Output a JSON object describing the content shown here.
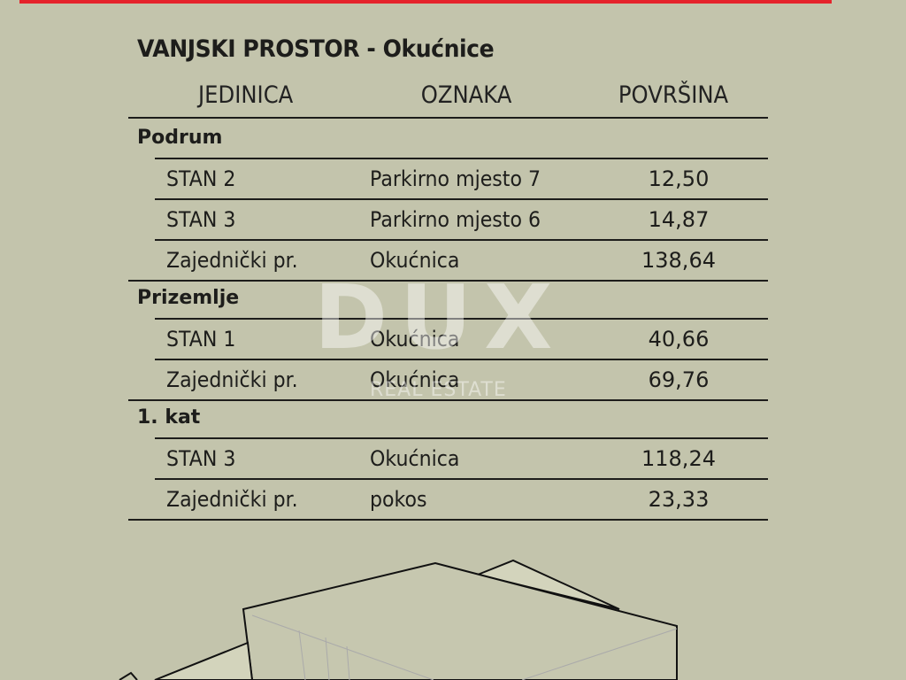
{
  "title": "VANJSKI PROSTOR - Okućnice",
  "columns": [
    "JEDINICA",
    "OZNAKA",
    "POVRŠINA"
  ],
  "sections": [
    {
      "name": "Podrum",
      "rows": [
        {
          "unit": "STAN 2",
          "label": "Parkirno mjesto 7",
          "area": "12,50"
        },
        {
          "unit": "STAN 3",
          "label": "Parkirno mjesto 6",
          "area": "14,87"
        },
        {
          "unit": "Zajednički pr.",
          "label": "Okućnica",
          "area": "138,64"
        }
      ]
    },
    {
      "name": "Prizemlje",
      "rows": [
        {
          "unit": "STAN 1",
          "label": "Okućnica",
          "area": "40,66"
        },
        {
          "unit": "Zajednički pr.",
          "label": "Okućnica",
          "area": "69,76"
        }
      ]
    },
    {
      "name": "1. kat",
      "rows": [
        {
          "unit": "STAN 3",
          "label": "Okućnica",
          "area": "118,24"
        },
        {
          "unit": "Zajednički pr.",
          "label": "pokos",
          "area": "23,33"
        }
      ]
    }
  ],
  "watermark": {
    "brand": "DUX",
    "tagline": "REAL ESTATE"
  },
  "colors": {
    "background": "#c3c4ac",
    "accent": "#e5232b"
  }
}
